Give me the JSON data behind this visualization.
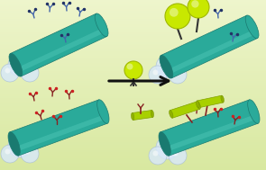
{
  "bg_color_top": "#eef5cc",
  "bg_color_bottom": "#d8e8a0",
  "tube_color": "#2aaa9a",
  "tube_dark": "#1a7a70",
  "tube_highlight": "#5dd0c0",
  "bubble_color": "#d8e8f8",
  "bubble_edge": "#aac0d8",
  "ball_color_green": "#c8e800",
  "rod_color_green": "#a8d000",
  "anchor_blue": "#4466aa",
  "anchor_dark": "#223366",
  "anchor_red": "#882222",
  "anchor_red2": "#cc2222",
  "arrow_color": "#111111",
  "tag_dark": "#333333",
  "rod_end_color": "#90b000",
  "rod_end_edge": "#709000"
}
